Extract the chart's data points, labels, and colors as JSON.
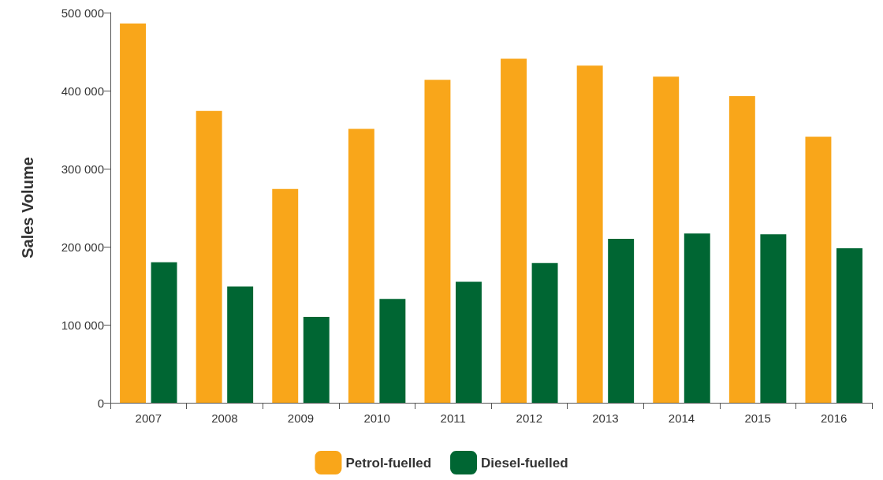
{
  "chart_data": {
    "type": "bar",
    "ylabel": "Sales Volume",
    "categories": [
      "2007",
      "2008",
      "2009",
      "2010",
      "2011",
      "2012",
      "2013",
      "2014",
      "2015",
      "2016"
    ],
    "series": [
      {
        "name": "Petrol-fuelled",
        "color": "#f9a61a",
        "values": [
          486000,
          374000,
          274000,
          351000,
          414000,
          441000,
          432000,
          418000,
          393000,
          341000
        ]
      },
      {
        "name": "Diesel-fuelled",
        "color": "#006633",
        "values": [
          180000,
          149000,
          110000,
          133000,
          155000,
          179000,
          210000,
          217000,
          216000,
          198000
        ]
      }
    ],
    "ylim": [
      0,
      500000
    ],
    "yticks": [
      0,
      {
        "value": 100000,
        "label": "100 000"
      },
      {
        "value": 200000,
        "label": "200 000"
      },
      {
        "value": 300000,
        "label": "300 000"
      },
      {
        "value": 400000,
        "label": "400 000"
      },
      {
        "value": 500000,
        "label": "500 000"
      }
    ],
    "grid": false,
    "legend": "bottom"
  }
}
